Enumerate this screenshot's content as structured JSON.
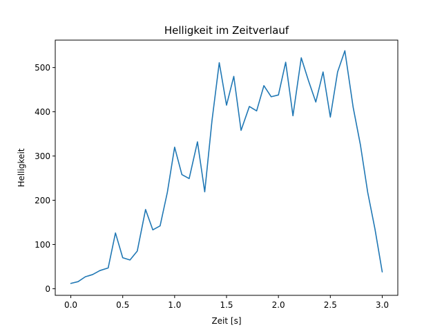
{
  "chart_data": {
    "type": "line",
    "title": "Helligkeit im Zeitverlauf",
    "xlabel": "Zeit [s]",
    "ylabel": "Helligkeit",
    "xlim": [
      -0.15,
      3.15
    ],
    "ylim": [
      -15,
      562
    ],
    "xticks": [
      0.0,
      0.5,
      1.0,
      1.5,
      2.0,
      2.5,
      3.0
    ],
    "xtick_labels": [
      "0.0",
      "0.5",
      "1.0",
      "1.5",
      "2.0",
      "2.5",
      "3.0"
    ],
    "yticks": [
      0,
      100,
      200,
      300,
      400,
      500
    ],
    "ytick_labels": [
      "0",
      "100",
      "200",
      "300",
      "400",
      "500"
    ],
    "grid": false,
    "color": "#1f77b4",
    "series": [
      {
        "x": [
          0.0,
          0.07,
          0.14,
          0.21,
          0.28,
          0.36,
          0.43,
          0.5,
          0.57,
          0.64,
          0.72,
          0.79,
          0.86,
          0.93,
          1.0,
          1.07,
          1.14,
          1.22,
          1.29,
          1.36,
          1.43,
          1.5,
          1.57,
          1.64,
          1.72,
          1.79,
          1.86,
          1.93,
          2.0,
          2.07,
          2.14,
          2.22,
          2.29,
          2.36,
          2.43,
          2.5,
          2.57,
          2.64,
          2.72,
          2.79,
          2.86,
          2.93,
          3.0
        ],
        "values": [
          12,
          16,
          27,
          32,
          41,
          47,
          126,
          70,
          65,
          85,
          179,
          133,
          142,
          218,
          320,
          258,
          249,
          332,
          219,
          380,
          511,
          415,
          480,
          358,
          412,
          402,
          459,
          434,
          438,
          512,
          391,
          522,
          470,
          422,
          490,
          388,
          490,
          538,
          410,
          325,
          218,
          135,
          38
        ]
      }
    ]
  }
}
